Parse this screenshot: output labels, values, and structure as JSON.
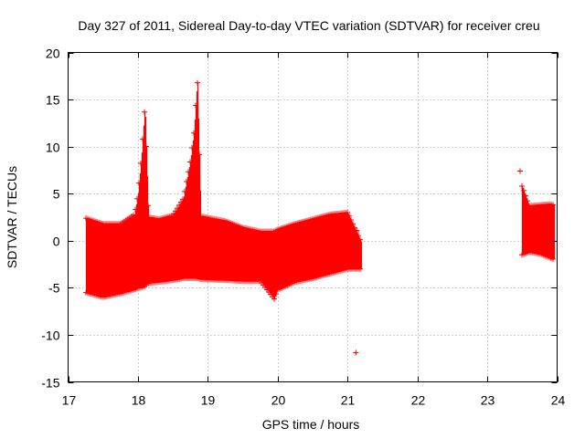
{
  "chart_data": {
    "type": "scatter",
    "title": "Day 327 of 2011, Sidereal Day-to-day VTEC variation (SDTVAR) for receiver creu",
    "xlabel": "GPS time / hours",
    "ylabel": "SDTVAR / TECUs",
    "xlim": [
      17,
      24
    ],
    "ylim": [
      -15,
      20
    ],
    "x_ticks": [
      17,
      18,
      19,
      20,
      21,
      22,
      23,
      24
    ],
    "y_ticks": [
      -15,
      -10,
      -5,
      0,
      5,
      10,
      15,
      20
    ],
    "x_tick_labels": [
      "17",
      "18",
      "19",
      "20",
      "21",
      "22",
      "23",
      "24"
    ],
    "y_tick_labels": [
      "-15",
      "-10",
      "-5",
      "0",
      "5",
      "10",
      "15",
      "20"
    ],
    "grid": true,
    "legend": "none",
    "series_color": "#ff0000",
    "series": [
      {
        "marker": "plus",
        "x": [
          17.25,
          17.5,
          17.75,
          17.95,
          18.0,
          18.05,
          18.1,
          18.15,
          18.3,
          18.5,
          18.65,
          18.75,
          18.8,
          18.85,
          18.9,
          19.25,
          19.5,
          19.75,
          19.95,
          20.0,
          20.25,
          20.5,
          20.75,
          21.0,
          21.2
        ],
        "upper": [
          2.4,
          1.8,
          1.8,
          2.8,
          5.0,
          9.0,
          14.5,
          2.5,
          2.3,
          2.7,
          4.5,
          8.5,
          11.5,
          17.2,
          2.6,
          2.1,
          1.4,
          1.0,
          1.0,
          1.2,
          1.8,
          2.3,
          2.8,
          3.0,
          -0.2
        ],
        "lower": [
          -5.5,
          -6.0,
          -5.6,
          -5.2,
          -5.0,
          -5.0,
          -4.8,
          -4.5,
          -4.4,
          -4.2,
          -4.0,
          -4.0,
          -4.0,
          -4.0,
          -4.1,
          -4.2,
          -4.3,
          -4.3,
          -6.2,
          -5.2,
          -4.4,
          -4.0,
          -3.5,
          -3.0,
          -3.0
        ]
      },
      {
        "marker": "plus",
        "x": [
          23.5,
          23.6,
          23.75,
          23.9,
          23.95
        ],
        "upper": [
          5.8,
          3.7,
          3.8,
          3.9,
          3.8
        ],
        "lower": [
          -1.5,
          -1.2,
          -1.4,
          -1.8,
          -2.0
        ]
      },
      {
        "marker": "plus",
        "points": [
          {
            "x": 21.13,
            "y": 1.1
          },
          {
            "x": 21.12,
            "y": -11.9
          },
          {
            "x": 23.47,
            "y": 7.4
          }
        ]
      }
    ]
  }
}
